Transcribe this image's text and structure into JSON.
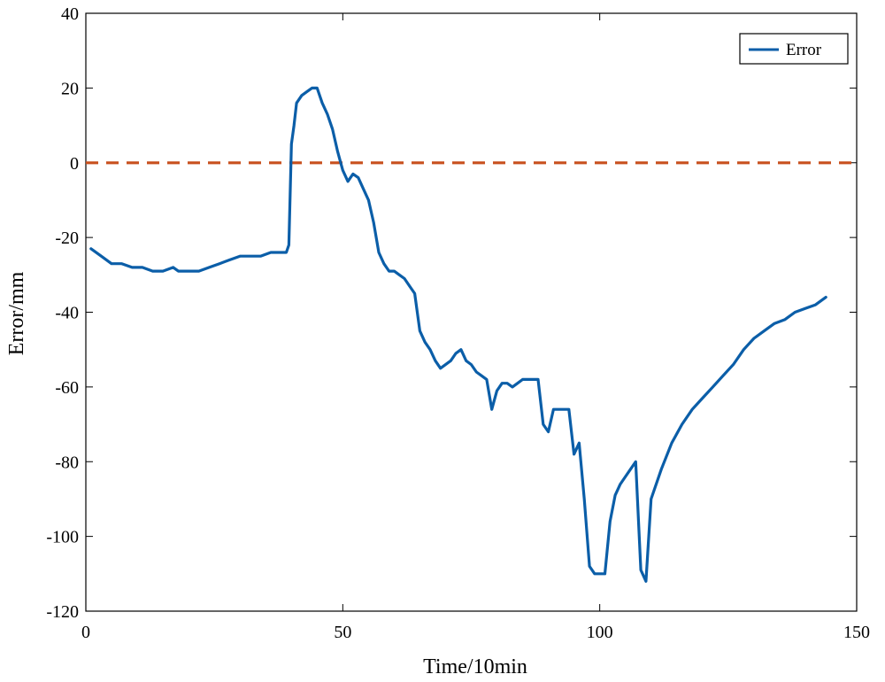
{
  "chart_data": {
    "type": "line",
    "title": "",
    "xlabel": "Time/10min",
    "ylabel": "Error/mm",
    "xlim": [
      0,
      150
    ],
    "ylim": [
      -120,
      40
    ],
    "xticks": [
      0,
      50,
      100,
      150
    ],
    "yticks": [
      -120,
      -100,
      -80,
      -60,
      -40,
      -20,
      0,
      20,
      40
    ],
    "grid": false,
    "legend_position": "top-right",
    "series": [
      {
        "name": "Error",
        "color": "#0b5ea8",
        "style": "solid",
        "x": [
          1,
          3,
          5,
          7,
          9,
          11,
          13,
          15,
          17,
          18,
          20,
          22,
          24,
          26,
          28,
          30,
          32,
          34,
          36,
          38,
          39,
          39.5,
          40,
          40.5,
          41,
          42,
          43,
          44,
          45,
          46,
          47,
          48,
          49,
          50,
          51,
          52,
          53,
          54,
          55,
          56,
          57,
          58,
          59,
          60,
          61,
          62,
          63,
          64,
          65,
          66,
          67,
          68,
          69,
          70,
          71,
          72,
          73,
          74,
          75,
          76,
          77,
          78,
          79,
          80,
          81,
          82,
          83,
          84,
          85,
          86,
          87,
          88,
          89,
          90,
          91,
          92,
          93,
          94,
          95,
          96,
          97,
          98,
          99,
          100,
          101,
          102,
          103,
          104,
          105,
          106,
          107,
          108,
          109,
          110,
          112,
          114,
          116,
          118,
          120,
          122,
          124,
          126,
          128,
          130,
          132,
          134,
          136,
          138,
          140,
          142,
          144
        ],
        "y": [
          -23,
          -25,
          -27,
          -27,
          -28,
          -28,
          -29,
          -29,
          -28,
          -29,
          -29,
          -29,
          -28,
          -27,
          -26,
          -25,
          -25,
          -25,
          -24,
          -24,
          -24,
          -22,
          5,
          10,
          16,
          18,
          19,
          20,
          20,
          16,
          13,
          9,
          3,
          -2,
          -5,
          -3,
          -4,
          -7,
          -10,
          -16,
          -24,
          -27,
          -29,
          -29,
          -30,
          -31,
          -33,
          -35,
          -45,
          -48,
          -50,
          -53,
          -55,
          -54,
          -53,
          -51,
          -50,
          -53,
          -54,
          -56,
          -57,
          -58,
          -66,
          -61,
          -59,
          -59,
          -60,
          -59,
          -58,
          -58,
          -58,
          -58,
          -70,
          -72,
          -66,
          -66,
          -66,
          -66,
          -78,
          -75,
          -90,
          -108,
          -110,
          -110,
          -110,
          -96,
          -89,
          -86,
          -84,
          -82,
          -80,
          -109,
          -112,
          -90,
          -82,
          -75,
          -70,
          -66,
          -63,
          -60,
          -57,
          -54,
          -50,
          -47,
          -45,
          -43,
          -42,
          -40,
          -39,
          -38,
          -36
        ]
      },
      {
        "name": "",
        "color": "#c8501e",
        "style": "dashed",
        "x": [
          0,
          150
        ],
        "y": [
          0,
          0
        ]
      }
    ]
  }
}
